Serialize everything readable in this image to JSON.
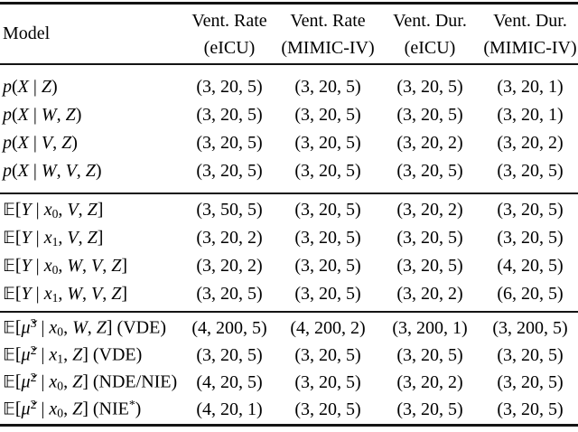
{
  "table": {
    "header": {
      "model_label": "Model",
      "columns": [
        {
          "line1": "Vent. Rate",
          "line2": "(eICU)"
        },
        {
          "line1": "Vent. Rate",
          "line2": "(MIMIC-IV)"
        },
        {
          "line1": "Vent. Dur.",
          "line2": "(eICU)"
        },
        {
          "line1": "Vent. Dur.",
          "line2": "(MIMIC-IV)"
        }
      ]
    },
    "groups": [
      {
        "rows": [
          {
            "label": [
              {
                "t": "p",
                "s": "i"
              },
              {
                "t": "("
              },
              {
                "t": "X",
                "s": "i"
              },
              {
                "t": " | "
              },
              {
                "t": "Z",
                "s": "i"
              },
              {
                "t": ")"
              }
            ],
            "values": [
              "(3, 20, 5)",
              "(3, 20, 5)",
              "(3, 20, 5)",
              "(3, 20, 1)"
            ]
          },
          {
            "label": [
              {
                "t": "p",
                "s": "i"
              },
              {
                "t": "("
              },
              {
                "t": "X",
                "s": "i"
              },
              {
                "t": " | "
              },
              {
                "t": "W",
                "s": "i"
              },
              {
                "t": ", "
              },
              {
                "t": "Z",
                "s": "i"
              },
              {
                "t": ")"
              }
            ],
            "values": [
              "(3, 20, 5)",
              "(3, 20, 5)",
              "(3, 20, 5)",
              "(3, 20, 1)"
            ]
          },
          {
            "label": [
              {
                "t": "p",
                "s": "i"
              },
              {
                "t": "("
              },
              {
                "t": "X",
                "s": "i"
              },
              {
                "t": " | "
              },
              {
                "t": "V",
                "s": "i"
              },
              {
                "t": ", "
              },
              {
                "t": "Z",
                "s": "i"
              },
              {
                "t": ")"
              }
            ],
            "values": [
              "(3, 20, 5)",
              "(3, 20, 5)",
              "(3, 20, 2)",
              "(3, 20, 2)"
            ]
          },
          {
            "label": [
              {
                "t": "p",
                "s": "i"
              },
              {
                "t": "("
              },
              {
                "t": "X",
                "s": "i"
              },
              {
                "t": " | "
              },
              {
                "t": "W",
                "s": "i"
              },
              {
                "t": ", "
              },
              {
                "t": "V",
                "s": "i"
              },
              {
                "t": ", "
              },
              {
                "t": "Z",
                "s": "i"
              },
              {
                "t": ")"
              }
            ],
            "values": [
              "(3, 20, 5)",
              "(3, 20, 5)",
              "(3, 20, 5)",
              "(3, 20, 5)"
            ]
          }
        ]
      },
      {
        "rows": [
          {
            "label": [
              {
                "t": "𝔼",
                "s": "bb"
              },
              {
                "t": "["
              },
              {
                "t": "Y",
                "s": "i"
              },
              {
                "t": " | "
              },
              {
                "t": "x",
                "s": "i"
              },
              {
                "t": "0",
                "s": "sub"
              },
              {
                "t": ", "
              },
              {
                "t": "V",
                "s": "i"
              },
              {
                "t": ", "
              },
              {
                "t": "Z",
                "s": "i"
              },
              {
                "t": "]"
              }
            ],
            "values": [
              "(3, 50, 5)",
              "(3, 20, 5)",
              "(3, 20, 2)",
              "(3, 20, 5)"
            ]
          },
          {
            "label": [
              {
                "t": "𝔼",
                "s": "bb"
              },
              {
                "t": "["
              },
              {
                "t": "Y",
                "s": "i"
              },
              {
                "t": " | "
              },
              {
                "t": "x",
                "s": "i"
              },
              {
                "t": "1",
                "s": "sub"
              },
              {
                "t": ", "
              },
              {
                "t": "V",
                "s": "i"
              },
              {
                "t": ", "
              },
              {
                "t": "Z",
                "s": "i"
              },
              {
                "t": "]"
              }
            ],
            "values": [
              "(3, 20, 2)",
              "(3, 20, 5)",
              "(3, 20, 5)",
              "(3, 20, 5)"
            ]
          },
          {
            "label": [
              {
                "t": "𝔼",
                "s": "bb"
              },
              {
                "t": "["
              },
              {
                "t": "Y",
                "s": "i"
              },
              {
                "t": " | "
              },
              {
                "t": "x",
                "s": "i"
              },
              {
                "t": "0",
                "s": "sub"
              },
              {
                "t": ", "
              },
              {
                "t": "W",
                "s": "i"
              },
              {
                "t": ", "
              },
              {
                "t": "V",
                "s": "i"
              },
              {
                "t": ", "
              },
              {
                "t": "Z",
                "s": "i"
              },
              {
                "t": "]"
              }
            ],
            "values": [
              "(3, 20, 2)",
              "(3, 20, 5)",
              "(3, 20, 5)",
              "(4, 20, 5)"
            ]
          },
          {
            "label": [
              {
                "t": "𝔼",
                "s": "bb"
              },
              {
                "t": "["
              },
              {
                "t": "Y",
                "s": "i"
              },
              {
                "t": " | "
              },
              {
                "t": "x",
                "s": "i"
              },
              {
                "t": "1",
                "s": "sub"
              },
              {
                "t": ", "
              },
              {
                "t": "W",
                "s": "i"
              },
              {
                "t": ", "
              },
              {
                "t": "V",
                "s": "i"
              },
              {
                "t": ", "
              },
              {
                "t": "Z",
                "s": "i"
              },
              {
                "t": "]"
              }
            ],
            "values": [
              "(3, 20, 5)",
              "(3, 20, 5)",
              "(3, 20, 2)",
              "(6, 20, 5)"
            ]
          }
        ]
      },
      {
        "rows": [
          {
            "label": [
              {
                "t": "𝔼",
                "s": "bb"
              },
              {
                "t": "["
              },
              {
                "t": "μ̌",
                "s": "i"
              },
              {
                "t": "3",
                "s": "sup"
              },
              {
                "t": " | "
              },
              {
                "t": "x",
                "s": "i"
              },
              {
                "t": "0",
                "s": "sub"
              },
              {
                "t": ", "
              },
              {
                "t": "W",
                "s": "i"
              },
              {
                "t": ", "
              },
              {
                "t": "Z",
                "s": "i"
              },
              {
                "t": "] (VDE)"
              }
            ],
            "values": [
              "(4, 200, 5)",
              "(4, 200, 2)",
              "(3, 200, 1)",
              "(3, 200, 5)"
            ]
          },
          {
            "label": [
              {
                "t": "𝔼",
                "s": "bb"
              },
              {
                "t": "["
              },
              {
                "t": "μ̌",
                "s": "i"
              },
              {
                "t": "2",
                "s": "sup"
              },
              {
                "t": " | "
              },
              {
                "t": "x",
                "s": "i"
              },
              {
                "t": "1",
                "s": "sub"
              },
              {
                "t": ", "
              },
              {
                "t": "Z",
                "s": "i"
              },
              {
                "t": "] (VDE)"
              }
            ],
            "values": [
              "(3, 20, 5)",
              "(3, 20, 5)",
              "(3, 20, 5)",
              "(3, 20, 5)"
            ]
          },
          {
            "label": [
              {
                "t": "𝔼",
                "s": "bb"
              },
              {
                "t": "["
              },
              {
                "t": "μ̌",
                "s": "i"
              },
              {
                "t": "2",
                "s": "sup"
              },
              {
                "t": " | "
              },
              {
                "t": "x",
                "s": "i"
              },
              {
                "t": "0",
                "s": "sub"
              },
              {
                "t": ", "
              },
              {
                "t": "Z",
                "s": "i"
              },
              {
                "t": "] (NDE/NIE)"
              }
            ],
            "values": [
              "(4, 20, 5)",
              "(3, 20, 5)",
              "(3, 20, 2)",
              "(3, 20, 5)"
            ]
          },
          {
            "label": [
              {
                "t": "𝔼",
                "s": "bb"
              },
              {
                "t": "["
              },
              {
                "t": "μ̌",
                "s": "i"
              },
              {
                "t": "2",
                "s": "sup"
              },
              {
                "t": " | "
              },
              {
                "t": "x",
                "s": "i"
              },
              {
                "t": "0",
                "s": "sub"
              },
              {
                "t": ", "
              },
              {
                "t": "Z",
                "s": "i"
              },
              {
                "t": "] (NIE"
              },
              {
                "t": "*",
                "s": "sup"
              },
              {
                "t": ")"
              }
            ],
            "values": [
              "(4, 20, 1)",
              "(3, 20, 5)",
              "(3, 20, 5)",
              "(3, 20, 5)"
            ]
          }
        ]
      }
    ]
  }
}
